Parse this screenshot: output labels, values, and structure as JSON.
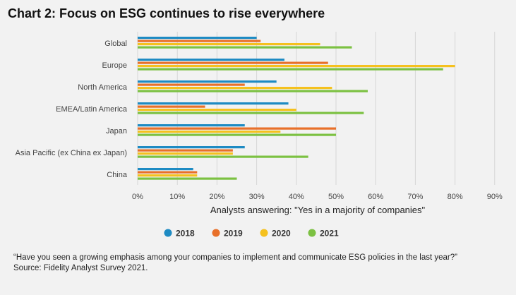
{
  "title": "Chart 2: Focus on ESG continues to rise everywhere",
  "footnote": {
    "question": "“Have you seen a growing emphasis among your companies to implement and communicate ESG policies in the last year?”",
    "source": "Source: Fidelity Analyst Survey 2021."
  },
  "chart_data": {
    "type": "bar",
    "orientation": "horizontal",
    "categories": [
      "Global",
      "Europe",
      "North America",
      "EMEA/Latin America",
      "Japan",
      "Asia Pacific (ex China ex Japan)",
      "China"
    ],
    "series": [
      {
        "name": "2018",
        "color": "#1e8bc3",
        "values": [
          30,
          37,
          35,
          38,
          27,
          27,
          14
        ]
      },
      {
        "name": "2019",
        "color": "#e8702a",
        "values": [
          31,
          48,
          27,
          17,
          50,
          24,
          15
        ]
      },
      {
        "name": "2020",
        "color": "#f5c11e",
        "values": [
          46,
          80,
          49,
          40,
          36,
          24,
          15
        ]
      },
      {
        "name": "2021",
        "color": "#7cc142",
        "values": [
          54,
          77,
          58,
          57,
          50,
          43,
          25
        ]
      }
    ],
    "xticks": [
      "0%",
      "10%",
      "20%",
      "30%",
      "40%",
      "50%",
      "60%",
      "70%",
      "80%",
      "90%"
    ],
    "xlim": [
      0,
      90
    ],
    "xlabel": "Analysts answering: \"Yes in a majority of companies\"",
    "ylabel": "",
    "grid": true,
    "legend_position": "bottom"
  }
}
